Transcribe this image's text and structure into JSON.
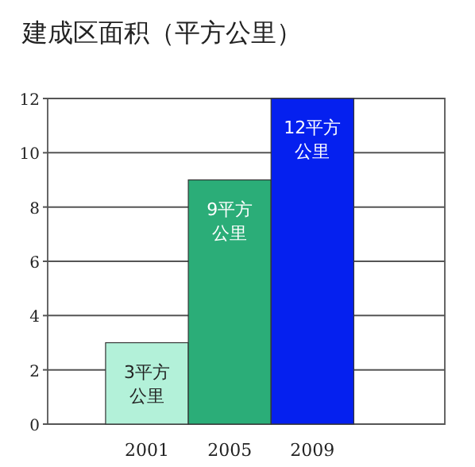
{
  "chart_data": {
    "type": "bar",
    "title": "建成区面积（平方公里）",
    "categories": [
      "2001",
      "2005",
      "2009"
    ],
    "values": [
      3,
      9,
      12
    ],
    "colors": [
      "#b3f1d9",
      "#2bad78",
      "#0520ef"
    ],
    "value_labels": [
      "3平方公里",
      "9平方公里",
      "12平方公里"
    ],
    "ylim": [
      0,
      12
    ],
    "yticks": [
      0,
      2,
      4,
      6,
      8,
      10,
      12
    ],
    "grid": "y"
  }
}
